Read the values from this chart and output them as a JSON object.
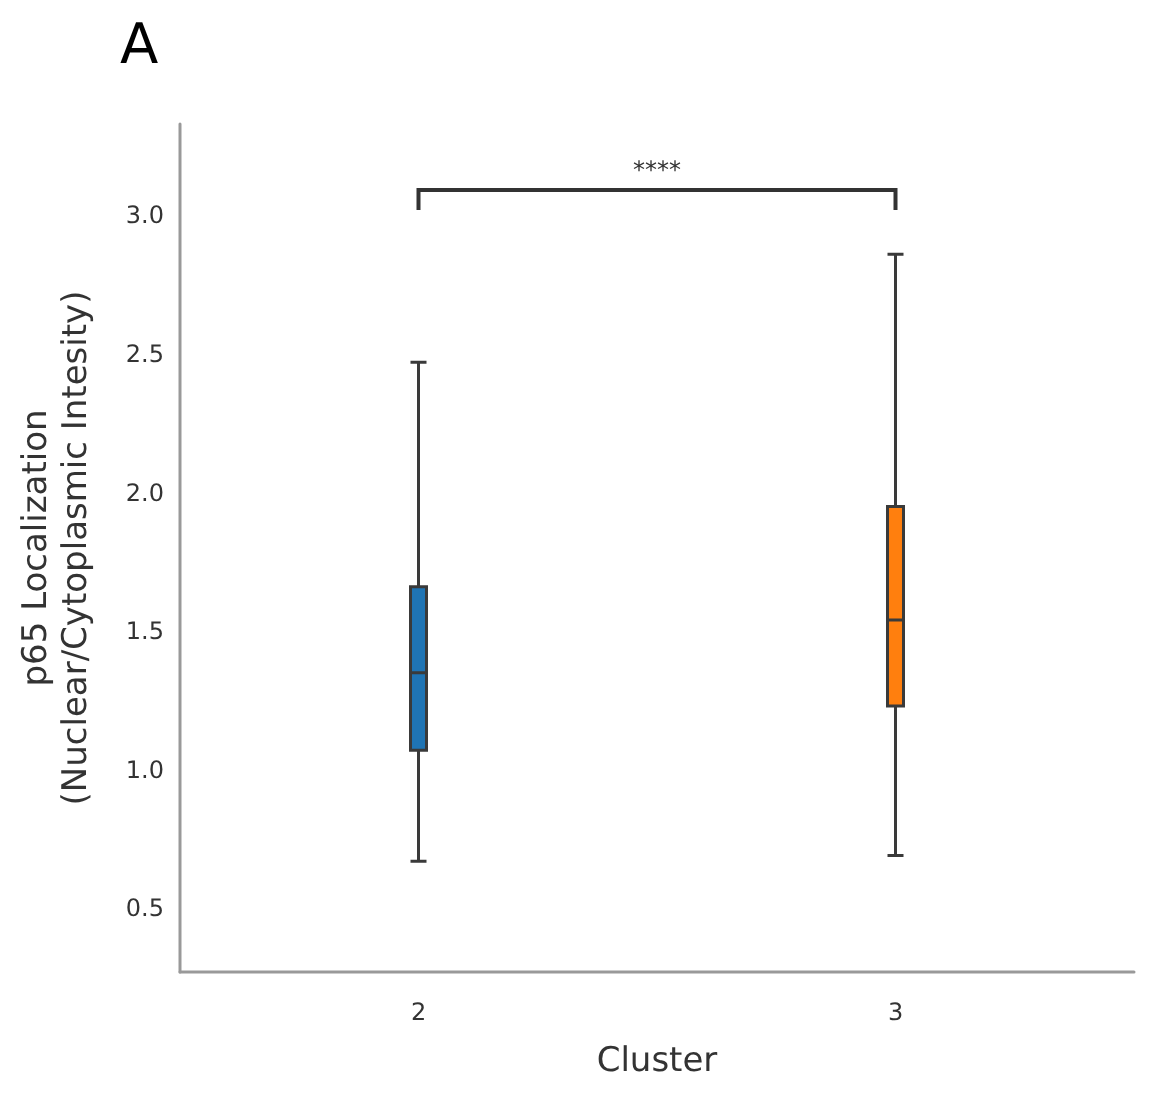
{
  "chart_data": {
    "type": "box",
    "title": "A",
    "xlabel": "Cluster",
    "ylabel": "p65 Localization\n(Nuclear/Cytoplasmic Intesity)",
    "categories": [
      "2",
      "3"
    ],
    "boxes": [
      {
        "low": 0.67,
        "q1": 1.07,
        "median": 1.35,
        "q3": 1.66,
        "high": 2.47
      },
      {
        "low": 0.69,
        "q1": 1.23,
        "median": 1.54,
        "q3": 1.95,
        "high": 2.86
      }
    ],
    "colors": [
      "#1f74b4",
      "#ff7f0e"
    ],
    "annotations": [
      "****"
    ],
    "ylim": [
      0.27,
      3.33
    ],
    "yticks": [
      0.5,
      {
        "value": 1,
        "label": "1.0"
      },
      1.5,
      {
        "value": 2,
        "label": "2.0"
      },
      2.5,
      {
        "value": 3,
        "label": "3.0"
      }
    ],
    "grid": false
  }
}
